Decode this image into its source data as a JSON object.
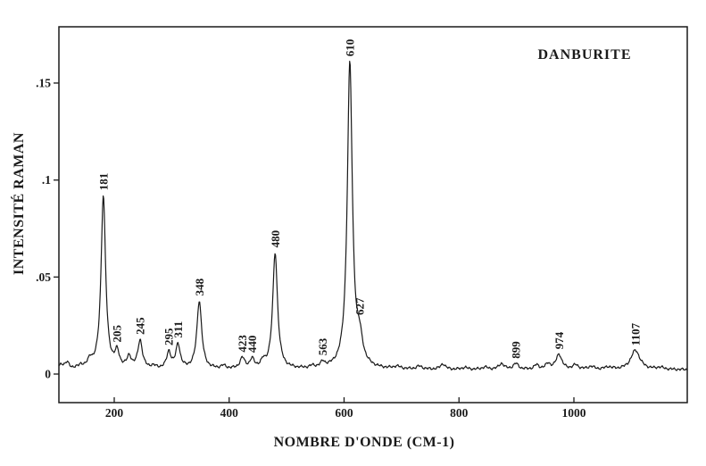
{
  "colors": {
    "ink": "#1a1a1a",
    "background": "#ffffff"
  },
  "chart_data": {
    "type": "line",
    "title": "DANBURITE",
    "xlabel": "NOMBRE D'ONDE (CM-1)",
    "ylabel": "INTENSITÉ RAMAN",
    "xlim": [
      104,
      1197
    ],
    "ylim": [
      -0.0147,
      0.179
    ],
    "grid": false,
    "legend": "none",
    "x_ticks": [
      200,
      400,
      600,
      800,
      1000
    ],
    "x_tick_labels": [
      "200",
      "400",
      "600",
      "800",
      "1000"
    ],
    "y_ticks": [
      0,
      0.05,
      0.1,
      0.15
    ],
    "y_tick_labels": [
      "0",
      ".05",
      ".1",
      ".15"
    ],
    "labeled_peaks": [
      {
        "wavenumber": 181,
        "intensity": 0.092
      },
      {
        "wavenumber": 205,
        "intensity": 0.013
      },
      {
        "wavenumber": 245,
        "intensity": 0.017
      },
      {
        "wavenumber": 295,
        "intensity": 0.011
      },
      {
        "wavenumber": 311,
        "intensity": 0.015
      },
      {
        "wavenumber": 348,
        "intensity": 0.038
      },
      {
        "wavenumber": 423,
        "intensity": 0.008
      },
      {
        "wavenumber": 440,
        "intensity": 0.007
      },
      {
        "wavenumber": 480,
        "intensity": 0.062
      },
      {
        "wavenumber": 563,
        "intensity": 0.007
      },
      {
        "wavenumber": 610,
        "intensity": 0.161
      },
      {
        "wavenumber": 627,
        "intensity": 0.028
      },
      {
        "wavenumber": 899,
        "intensity": 0.005
      },
      {
        "wavenumber": 974,
        "intensity": 0.01
      },
      {
        "wavenumber": 1107,
        "intensity": 0.012
      }
    ],
    "curve_model": {
      "baseline": 0.0022,
      "noise": [
        {
          "amp": 0.0004,
          "freq": 0.9,
          "phase": 0
        },
        {
          "amp": 0.00025,
          "freq": 0.37,
          "phase": 1.7
        },
        {
          "amp": 0.0002,
          "freq": 2.13,
          "phase": 0.4
        }
      ],
      "peaks": [
        {
          "c": 108,
          "h": 0.0022,
          "w": 10
        },
        {
          "c": 118,
          "h": 0.003,
          "w": 9
        },
        {
          "c": 142,
          "h": 0.0016,
          "w": 9
        },
        {
          "c": 158,
          "h": 0.004,
          "w": 9
        },
        {
          "c": 181,
          "h": 0.0895,
          "w": 9.5,
          "label": "181"
        },
        {
          "c": 205,
          "h": 0.0078,
          "w": 9,
          "label": "205"
        },
        {
          "c": 226,
          "h": 0.0058,
          "w": 9
        },
        {
          "c": 245,
          "h": 0.0145,
          "w": 9.5,
          "label": "245"
        },
        {
          "c": 268,
          "h": 0.0012,
          "w": 12
        },
        {
          "c": 295,
          "h": 0.0085,
          "w": 9,
          "label": "295"
        },
        {
          "c": 311,
          "h": 0.0125,
          "w": 9,
          "label": "311"
        },
        {
          "c": 348,
          "h": 0.0352,
          "w": 10,
          "label": "348"
        },
        {
          "c": 390,
          "h": 0.0015,
          "w": 10
        },
        {
          "c": 423,
          "h": 0.0055,
          "w": 10,
          "label": "423"
        },
        {
          "c": 440,
          "h": 0.0046,
          "w": 9,
          "label": "440"
        },
        {
          "c": 459,
          "h": 0.003,
          "w": 9
        },
        {
          "c": 480,
          "h": 0.06,
          "w": 10,
          "label": "480"
        },
        {
          "c": 545,
          "h": 0.001,
          "w": 10
        },
        {
          "c": 563,
          "h": 0.0026,
          "w": 9,
          "label": "563"
        },
        {
          "c": 610,
          "h": 0.1575,
          "w": 10.5,
          "label": "610"
        },
        {
          "c": 627,
          "h": 0.012,
          "w": 13,
          "label": "627"
        },
        {
          "c": 692,
          "h": 0.0012,
          "w": 14
        },
        {
          "c": 731,
          "h": 0.0015,
          "w": 12
        },
        {
          "c": 772,
          "h": 0.0028,
          "w": 10
        },
        {
          "c": 810,
          "h": 0.001,
          "w": 12
        },
        {
          "c": 845,
          "h": 0.0012,
          "w": 12
        },
        {
          "c": 874,
          "h": 0.003,
          "w": 11
        },
        {
          "c": 899,
          "h": 0.003,
          "w": 11,
          "label": "899"
        },
        {
          "c": 935,
          "h": 0.0022,
          "w": 10
        },
        {
          "c": 955,
          "h": 0.0028,
          "w": 10
        },
        {
          "c": 974,
          "h": 0.0078,
          "w": 12,
          "label": "974"
        },
        {
          "c": 1003,
          "h": 0.0022,
          "w": 12
        },
        {
          "c": 1030,
          "h": 0.0015,
          "w": 12
        },
        {
          "c": 1060,
          "h": 0.0012,
          "w": 14
        },
        {
          "c": 1107,
          "h": 0.01,
          "w": 19,
          "label": "1107"
        },
        {
          "c": 1150,
          "h": 0.001,
          "w": 16
        }
      ]
    }
  }
}
